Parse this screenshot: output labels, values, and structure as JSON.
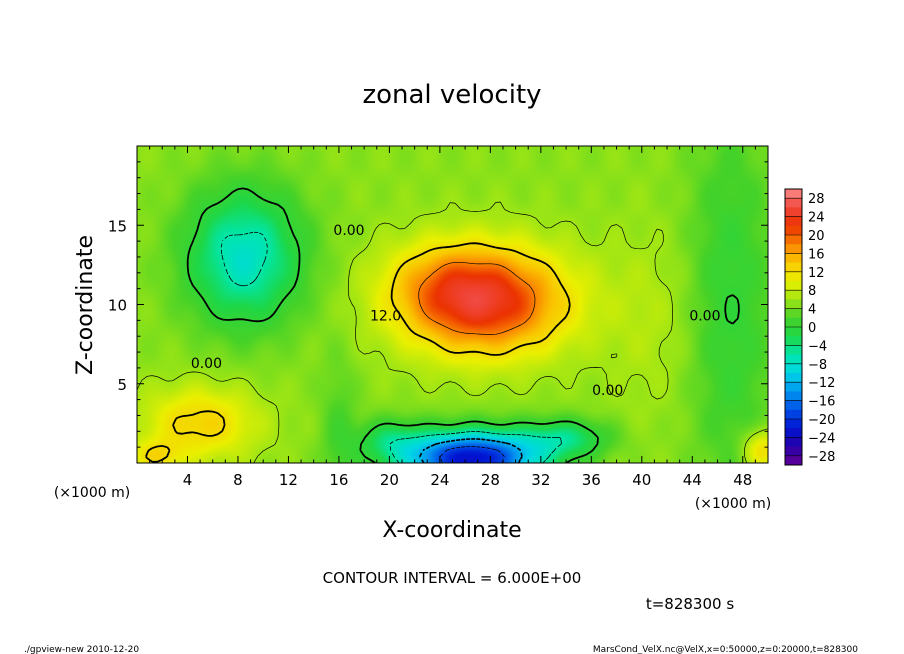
{
  "chart_data": {
    "type": "heatmap",
    "title": "zonal velocity",
    "xlabel": "X-coordinate",
    "ylabel": "Z-coordinate",
    "x_unit": "(×1000 m)",
    "y_unit": "(×1000 m)",
    "xlim": [
      0,
      50
    ],
    "ylim": [
      0,
      20
    ],
    "x_ticks": [
      4,
      8,
      12,
      16,
      20,
      24,
      28,
      32,
      36,
      40,
      44,
      48
    ],
    "y_ticks": [
      5,
      10,
      15
    ],
    "colorbar": {
      "levels": [
        28,
        24,
        20,
        16,
        12,
        8,
        4,
        0,
        -4,
        -8,
        -12,
        -16,
        -20,
        -24,
        -28
      ],
      "labels": [
        "28",
        "24",
        "20",
        "16",
        "12",
        "8",
        "4",
        "0",
        "−4",
        "−8",
        "−12",
        "−16",
        "−20",
        "−24",
        "−28"
      ],
      "vmin": -30,
      "vmax": 30
    },
    "contour_interval": "CONTOUR INTERVAL = 6.000E+00",
    "contour_labels": [
      {
        "text": "0.00",
        "x": 16.8,
        "y": 14.4
      },
      {
        "text": "0.00",
        "x": 5.5,
        "y": 6.0
      },
      {
        "text": "12.0",
        "x": 19.7,
        "y": 9.0
      },
      {
        "text": "0.00",
        "x": 37.3,
        "y": 4.3
      },
      {
        "text": "0.00",
        "x": 45.0,
        "y": 9.0
      }
    ],
    "features": [
      {
        "type": "max",
        "x": 27,
        "y": 10,
        "value": 23
      },
      {
        "type": "min",
        "x": 26,
        "y": 0.5,
        "value": -22
      },
      {
        "type": "min",
        "x": 8,
        "y": 13,
        "value": -9
      }
    ]
  },
  "time_label": "t=828300  s",
  "footer": {
    "left": "./gpview-new  2010-12-20",
    "right": "MarsCond_VelX.nc@VelX,x=0:50000,z=0:20000,t=828300"
  }
}
